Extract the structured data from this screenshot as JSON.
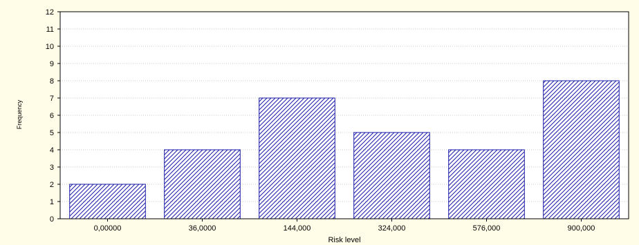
{
  "chart_data": {
    "type": "bar",
    "categories": [
      "0,00000",
      "36,0000",
      "144,000",
      "324,000",
      "576,000",
      "900,000"
    ],
    "values": [
      2,
      4,
      7,
      5,
      4,
      8
    ],
    "xlabel": "Risk level",
    "ylabel": "Frequency",
    "ylim": [
      0,
      12
    ],
    "yticks": [
      "0",
      "1",
      "2",
      "3",
      "4",
      "5",
      "6",
      "7",
      "8",
      "9",
      "10",
      "11",
      "12"
    ],
    "grid": true,
    "bar_color": "#1a1aa8",
    "bar_fill": "hatched-diagonal",
    "background_color": "#fffde7",
    "plot_background_color": "#ffffff"
  }
}
